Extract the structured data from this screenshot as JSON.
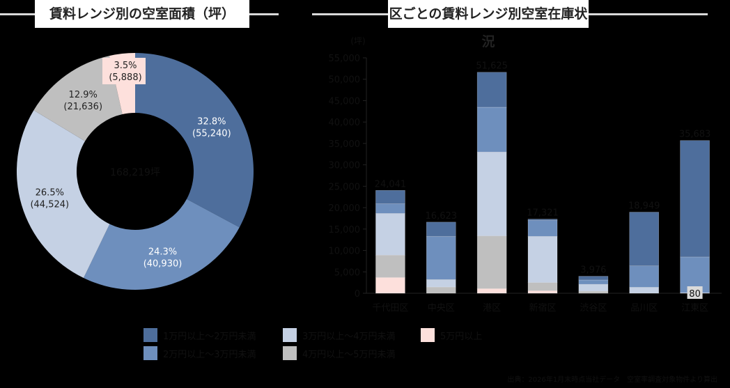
{
  "titles": {
    "left": "賃料レンジ別の空室面積（坪）",
    "right": "区ごとの賃料レンジ別空室在庫状況"
  },
  "colors": {
    "r1": "#4e6e9c",
    "r2": "#6e8fbd",
    "r3": "#c5d1e4",
    "r4": "#bfbfbf",
    "r5": "#fde0dc"
  },
  "legend": [
    {
      "key": "r1",
      "label": "1万円以上～2万円未満"
    },
    {
      "key": "r2",
      "label": "2万円以上～3万円未満"
    },
    {
      "key": "r3",
      "label": "3万円以上～4万円未満"
    },
    {
      "key": "r4",
      "label": "4万円以上～5万円未満"
    },
    {
      "key": "r5",
      "label": "5万円以上"
    }
  ],
  "source": "出典：2026年1月末時点当社データ　空室率調査対象物件より算出",
  "chart_data": [
    {
      "type": "pie",
      "title": "賃料レンジ別の空室面積（坪）",
      "donut": true,
      "center_label": "168,219坪",
      "categories": [
        "1万円以上～2万円未満",
        "2万円以上～3万円未満",
        "3万円以上～4万円未満",
        "4万円以上～5万円未満",
        "5万円以上"
      ],
      "values": [
        55240,
        40930,
        44524,
        21636,
        5888
      ],
      "percent_labels": [
        "32.8%",
        "24.3%",
        "26.5%",
        "12.9%",
        "3.5%"
      ],
      "value_labels": [
        "(55,240)",
        "(40,930)",
        "(44,524)",
        "(21,636)",
        "(5,888)"
      ]
    },
    {
      "type": "bar",
      "stacked": true,
      "title": "区ごとの賃料レンジ別空室在庫状況",
      "ylabel": "(坪)",
      "ylim": [
        0,
        55000
      ],
      "yticks": [
        "0",
        "5,000",
        "10,000",
        "15,000",
        "20,000",
        "25,000",
        "30,000",
        "35,000",
        "40,000",
        "45,000",
        "50,000",
        "55,000"
      ],
      "categories": [
        "千代田区",
        "中央区",
        "港区",
        "新宿区",
        "渋谷区",
        "品川区",
        "江東区"
      ],
      "totals": [
        24041,
        16623,
        51625,
        17321,
        3976,
        18949,
        35683
      ],
      "total_labels": [
        "24,041",
        "16,623",
        "51,625",
        "17,321",
        "3,976",
        "18,949",
        "35,683"
      ],
      "series": [
        {
          "name": "5万円以上",
          "key": "r5",
          "values": [
            3700,
            0,
            1100,
            600,
            0,
            0,
            80
          ]
        },
        {
          "name": "4万円以上～5万円未満",
          "key": "r4",
          "values": [
            5200,
            1450,
            12300,
            1900,
            500,
            0,
            0
          ]
        },
        {
          "name": "3万円以上～4万円未満",
          "key": "r3",
          "values": [
            9750,
            1750,
            19600,
            10800,
            1600,
            1400,
            0
          ]
        },
        {
          "name": "2万円以上～3万円未満",
          "key": "r2",
          "values": [
            2250,
            10100,
            10450,
            3700,
            1000,
            5000,
            8400
          ]
        },
        {
          "name": "1万円以上～2万円未満",
          "key": "r1",
          "values": [
            3141,
            3323,
            8175,
            321,
            876,
            12549,
            27203
          ]
        }
      ],
      "annotations": [
        {
          "category": "江東区",
          "text": "80"
        }
      ]
    }
  ]
}
